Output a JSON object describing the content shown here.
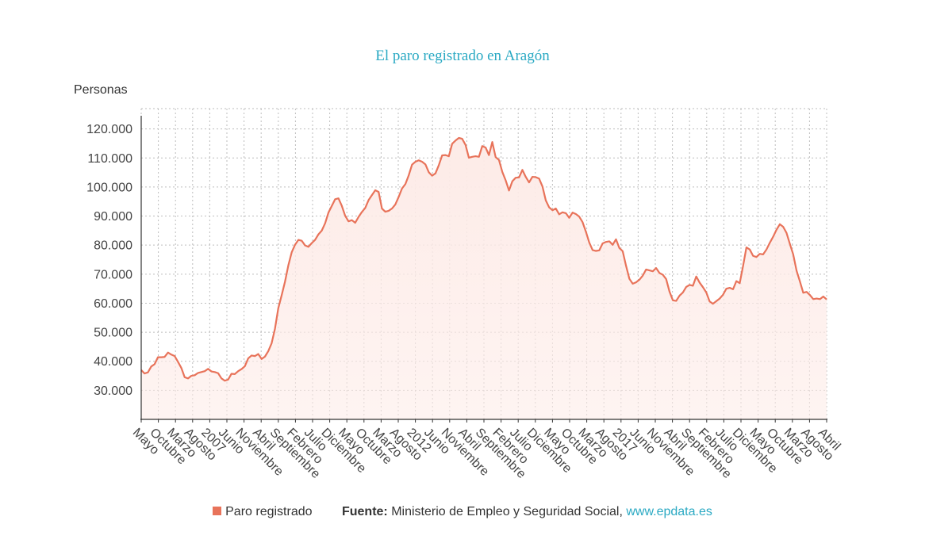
{
  "title": "El paro registrado en Aragón",
  "y_unit_label": "Personas",
  "legend": {
    "series_label": "Paro registrado",
    "color": "#e8735a"
  },
  "source": {
    "label": "Fuente:",
    "text": "Ministerio de Empleo y Seguridad Social,",
    "link_text": "www.epdata.es"
  },
  "colors": {
    "line": "#e8735a",
    "area": "#fdebe7",
    "accent_text": "#2aa9c3"
  },
  "chart_data": {
    "type": "area",
    "x_tick_labels": [
      "Mayo",
      "Octubre",
      "Marzo",
      "Agosto",
      "2007",
      "Junio",
      "Noviembre",
      "Abril",
      "Septiembre",
      "Febrero",
      "Julio",
      "Diciembre",
      "Mayo",
      "Octubre",
      "Marzo",
      "Agosto",
      "2012",
      "Junio",
      "Noviembre",
      "Abril",
      "Septiembre",
      "Febrero",
      "Julio",
      "Diciembre",
      "Mayo",
      "Octubre",
      "Marzo",
      "Agosto",
      "2017",
      "Junio",
      "Noviembre",
      "Abril",
      "Septiembre",
      "Febrero",
      "Julio",
      "Diciembre",
      "Mayo",
      "Octubre",
      "Marzo",
      "Agosto",
      "Abril"
    ],
    "y_ticks": [
      30000,
      40000,
      50000,
      60000,
      70000,
      80000,
      90000,
      100000,
      110000,
      120000
    ],
    "y_tick_labels": [
      "30.000",
      "40.000",
      "50.000",
      "60.000",
      "70.000",
      "80.000",
      "90.000",
      "100.000",
      "110.000",
      "120.000"
    ],
    "ylim": [
      20000,
      127000
    ],
    "grid": true,
    "legend_position": "bottom",
    "series": [
      {
        "name": "Paro registrado",
        "values": [
          37000,
          35800,
          36200,
          38200,
          39000,
          41400,
          41400,
          41500,
          43000,
          42300,
          41800,
          39800,
          37700,
          34500,
          34100,
          35000,
          35200,
          36000,
          36300,
          36600,
          37400,
          36500,
          36300,
          35900,
          34100,
          33300,
          33700,
          35700,
          35600,
          36600,
          37300,
          38300,
          41000,
          42000,
          41800,
          42500,
          40800,
          41600,
          43500,
          46200,
          51200,
          58300,
          62700,
          67400,
          73000,
          77500,
          80100,
          81800,
          81500,
          79900,
          79400,
          80700,
          81800,
          83700,
          85000,
          87500,
          91200,
          93500,
          95800,
          96100,
          93500,
          90100,
          88200,
          88600,
          87700,
          89700,
          91400,
          92800,
          95500,
          97200,
          98900,
          98300,
          92600,
          91500,
          91800,
          92600,
          94000,
          96600,
          99500,
          101000,
          104000,
          107700,
          108700,
          109200,
          108700,
          107800,
          105100,
          103900,
          104700,
          107500,
          110900,
          111000,
          110600,
          114900,
          116000,
          116900,
          116600,
          114500,
          110100,
          110400,
          110600,
          110400,
          114100,
          113600,
          111000,
          115500,
          110300,
          109300,
          105200,
          102300,
          98800,
          102000,
          103200,
          103300,
          105900,
          103500,
          101600,
          103500,
          103400,
          102900,
          100200,
          95400,
          93000,
          92000,
          92600,
          90600,
          91300,
          91000,
          89400,
          91200,
          90700,
          89800,
          87900,
          84600,
          80900,
          78300,
          78000,
          78200,
          80600,
          81100,
          81300,
          80100,
          82000,
          79000,
          77900,
          72900,
          68400,
          66700,
          67200,
          68100,
          69500,
          71600,
          71300,
          71000,
          72100,
          70400,
          69800,
          68300,
          64000,
          61000,
          60800,
          62600,
          63700,
          65600,
          66300,
          66000,
          69200,
          67100,
          65500,
          63700,
          60600,
          59800,
          60700,
          61600,
          62900,
          65000,
          65300,
          64800,
          67600,
          66900,
          72800,
          79200,
          78500,
          76300,
          75900,
          77000,
          76800,
          78500,
          80800,
          82900,
          85300,
          87200,
          86300,
          84200,
          80400,
          76800,
          71200,
          67500,
          63600,
          63900,
          62800,
          61400,
          61600,
          61400,
          62300,
          61300
        ]
      }
    ]
  }
}
